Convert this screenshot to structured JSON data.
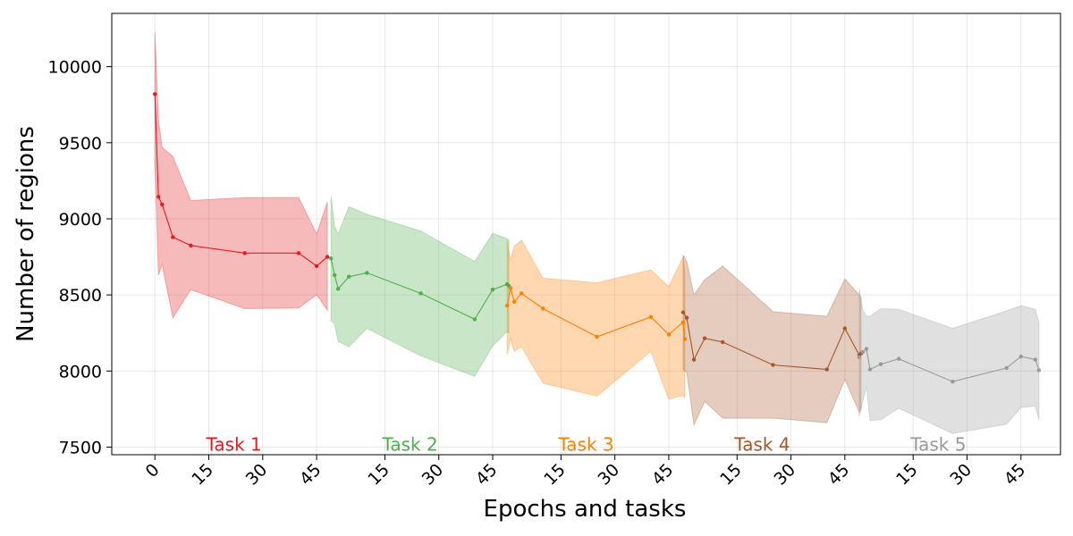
{
  "chart_data": {
    "type": "line",
    "xlabel": "Epochs and tasks",
    "ylabel": "Number of regions",
    "ylim": [
      7450,
      10350
    ],
    "yticks": [
      7500,
      8000,
      8500,
      9000,
      9500,
      10000
    ],
    "ytick_labels": [
      "7500",
      "8000",
      "8500",
      "9000",
      "9500",
      "10000"
    ],
    "xlim": [
      -12,
      252
    ],
    "epochs_per_task": 49,
    "xticks": [
      0,
      15,
      30,
      45,
      64,
      79,
      94,
      113,
      128,
      143,
      162,
      177,
      192,
      211,
      226,
      241
    ],
    "xtick_labels": [
      "0",
      "15",
      "30",
      "45",
      "15",
      "30",
      "45",
      "15",
      "30",
      "45",
      "15",
      "30",
      "45",
      "15",
      "30",
      "45"
    ],
    "grid": true,
    "series": [
      {
        "name": "Task 1",
        "label": "Task 1",
        "color": "#e41a1c",
        "label_x": 22,
        "x": [
          0,
          1,
          2,
          5,
          10,
          25,
          40,
          45,
          48
        ],
        "y": [
          9820,
          9145,
          9095,
          8880,
          8825,
          8775,
          8775,
          8690,
          8750
        ],
        "upper": [
          10230,
          9650,
          9470,
          9410,
          9120,
          9140,
          9140,
          8900,
          9110
        ],
        "lower": [
          9380,
          8630,
          8700,
          8350,
          8535,
          8410,
          8415,
          8500,
          8400
        ]
      },
      {
        "name": "Task 2",
        "label": "Task 2",
        "color": "#4daf4a",
        "label_x": 71,
        "x": [
          49,
          50,
          51,
          54,
          59,
          74,
          89,
          94,
          98,
          98.5
        ],
        "y": [
          8740,
          8630,
          8540,
          8620,
          8645,
          8510,
          8340,
          8535,
          8570,
          8560
        ],
        "upper": [
          9150,
          8950,
          8900,
          9080,
          9030,
          8920,
          8720,
          8905,
          8870,
          8860
        ],
        "lower": [
          8330,
          8310,
          8195,
          8160,
          8280,
          8100,
          7965,
          8165,
          8260,
          8250
        ]
      },
      {
        "name": "Task 3",
        "label": "Task 3",
        "color": "#ff7f00",
        "label_x": 120,
        "x": [
          98,
          99,
          100,
          102,
          108,
          123,
          138,
          143,
          147,
          147.5
        ],
        "y": [
          8430,
          8545,
          8455,
          8510,
          8410,
          8225,
          8355,
          8240,
          8320,
          8210
        ],
        "upper": [
          8860,
          8730,
          8820,
          8860,
          8610,
          8580,
          8665,
          8555,
          8750,
          8640
        ],
        "lower": [
          8110,
          8210,
          8130,
          8160,
          7920,
          7835,
          8130,
          7815,
          7840,
          7820
        ]
      },
      {
        "name": "Task 4",
        "label": "Task 4",
        "color": "#a65628",
        "label_x": 169,
        "x": [
          147,
          148,
          150,
          153,
          158,
          172,
          187,
          192,
          196,
          196.5
        ],
        "y": [
          8385,
          8350,
          8075,
          8215,
          8190,
          8040,
          8010,
          8280,
          8105,
          8115
        ],
        "upper": [
          8760,
          8720,
          8500,
          8600,
          8690,
          8390,
          8360,
          8605,
          8500,
          8480
        ],
        "lower": [
          8010,
          7990,
          7645,
          7800,
          7690,
          7690,
          7660,
          7945,
          7730,
          7750
        ]
      },
      {
        "name": "Task 5",
        "label": "Task 5",
        "color": "#999999",
        "label_x": 218,
        "x": [
          196,
          197,
          198,
          199,
          202,
          207,
          222,
          237,
          241,
          245,
          246
        ],
        "y": [
          8090,
          8125,
          8145,
          8010,
          8045,
          8080,
          7930,
          8020,
          8095,
          8075,
          8005
        ],
        "upper": [
          8540,
          8400,
          8360,
          8360,
          8410,
          8405,
          8280,
          8395,
          8430,
          8405,
          8320
        ],
        "lower": [
          7700,
          7800,
          7900,
          7675,
          7680,
          7755,
          7590,
          7650,
          7760,
          7770,
          7680
        ]
      }
    ]
  }
}
